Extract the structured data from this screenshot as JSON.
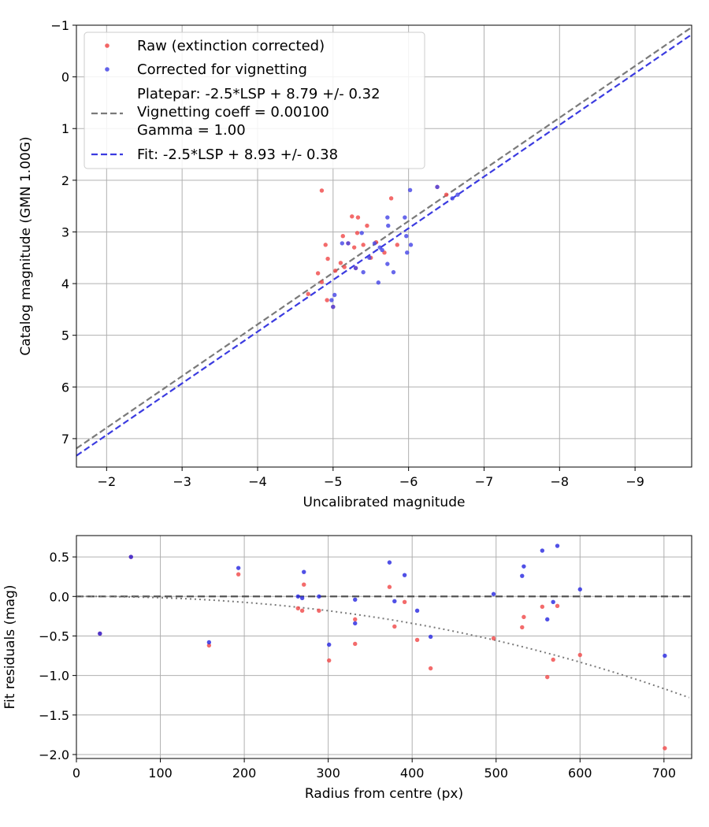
{
  "chart_data": [
    {
      "type": "scatter",
      "xlabel": "Uncalibrated magnitude",
      "ylabel": "Catalog magnitude (GMN 1.00G)",
      "xlim": [
        -1.6,
        -9.75
      ],
      "ylim": [
        7.55,
        -1.0
      ],
      "xticks": [
        -2,
        -3,
        -4,
        -5,
        -6,
        -7,
        -8,
        -9
      ],
      "yticks": [
        -1,
        0,
        1,
        2,
        3,
        4,
        5,
        6,
        7
      ],
      "grid": true,
      "legend_position": "top-left",
      "legend": [
        {
          "kind": "marker",
          "color": "#f04a4a",
          "text": [
            "Raw (extinction corrected)"
          ]
        },
        {
          "kind": "marker",
          "color": "#4747e6",
          "text": [
            "Corrected for vignetting"
          ]
        },
        {
          "kind": "line",
          "color": "#7a7a7a",
          "text": [
            "Platepar: -2.5*LSP + 8.79 +/- 0.32",
            "Vignetting coeff = 0.00100",
            "Gamma = 1.00"
          ]
        },
        {
          "kind": "line",
          "color": "#3b3be0",
          "text": [
            "Fit: -2.5*LSP + 8.93 +/- 0.38"
          ]
        }
      ],
      "lines": [
        {
          "name": "Platepar",
          "color": "#7a7a7a",
          "x": [
            -1.6,
            -9.75
          ],
          "y": [
            7.19,
            -0.96
          ]
        },
        {
          "name": "Fit",
          "color": "#3b3be0",
          "x": [
            -1.6,
            -9.75
          ],
          "y": [
            7.33,
            -0.82
          ]
        }
      ],
      "series": [
        {
          "name": "Raw (extinction corrected)",
          "color": "#f04a4a",
          "points": [
            [
              -4.85,
              2.2
            ],
            [
              -4.9,
              3.25
            ],
            [
              -4.93,
              3.52
            ],
            [
              -5.03,
              3.75
            ],
            [
              -5.1,
              3.6
            ],
            [
              -5.15,
              3.68
            ],
            [
              -5.13,
              3.08
            ],
            [
              -5.2,
              3.22
            ],
            [
              -5.25,
              2.7
            ],
            [
              -5.33,
              2.72
            ],
            [
              -5.28,
              3.3
            ],
            [
              -5.32,
              3.02
            ],
            [
              -5.45,
              2.88
            ],
            [
              -5.4,
              3.25
            ],
            [
              -5.5,
              3.5
            ],
            [
              -5.57,
              3.2
            ],
            [
              -5.68,
              3.4
            ],
            [
              -5.77,
              2.35
            ],
            [
              -5.85,
              3.25
            ],
            [
              -6.38,
              2.13
            ],
            [
              -6.5,
              2.28
            ],
            [
              -4.8,
              3.8
            ],
            [
              -4.85,
              3.97
            ],
            [
              -4.92,
              4.32
            ],
            [
              -4.67,
              4.2
            ],
            [
              -5.0,
              4.45
            ],
            [
              -5.3,
              3.7
            ]
          ]
        },
        {
          "name": "Corrected for vignetting",
          "color": "#4747e6",
          "points": [
            [
              -5.12,
              3.22
            ],
            [
              -5.38,
              3.02
            ],
            [
              -5.55,
              3.22
            ],
            [
              -5.62,
              3.3
            ],
            [
              -5.6,
              3.98
            ],
            [
              -5.72,
              2.72
            ],
            [
              -5.73,
              2.88
            ],
            [
              -5.72,
              3.62
            ],
            [
              -5.8,
              3.78
            ],
            [
              -5.95,
              2.72
            ],
            [
              -5.97,
              3.08
            ],
            [
              -5.98,
              3.4
            ],
            [
              -6.02,
              2.19
            ],
            [
              -6.03,
              3.25
            ],
            [
              -6.38,
              2.13
            ],
            [
              -6.58,
              2.35
            ],
            [
              -6.65,
              2.28
            ],
            [
              -5.0,
              4.45
            ],
            [
              -4.98,
              4.32
            ],
            [
              -5.02,
              4.22
            ],
            [
              -5.3,
              3.7
            ],
            [
              -5.4,
              3.78
            ],
            [
              -5.48,
              3.5
            ],
            [
              -5.2,
              3.22
            ],
            [
              -5.65,
              3.35
            ]
          ]
        }
      ]
    },
    {
      "type": "scatter",
      "xlabel": "Radius from centre (px)",
      "ylabel": "Fit residuals (mag)",
      "xlim": [
        0,
        733
      ],
      "ylim": [
        -2.05,
        0.77
      ],
      "xticks": [
        0,
        100,
        200,
        300,
        400,
        500,
        600,
        700
      ],
      "yticks": [
        0.5,
        0.0,
        -0.5,
        -1.0,
        -1.5,
        -2.0
      ],
      "ytick_labels": [
        "0.5",
        "0.0",
        "−0.5",
        "−1.0",
        "−1.5",
        "−2.0"
      ],
      "xtick_labels": [
        "0",
        "100",
        "200",
        "300",
        "400",
        "500",
        "600",
        "700"
      ],
      "grid": true,
      "lines": [
        {
          "name": "zero",
          "style": "dashed",
          "color": "#555555",
          "type": "constant",
          "value": 0
        },
        {
          "name": "vignetting",
          "style": "dotted",
          "color": "#7a7a7a",
          "type": "curve",
          "x_max": 730,
          "y_end": -1.28
        }
      ],
      "series": [
        {
          "name": "Raw",
          "color": "#f04a4a",
          "points": [
            [
              28,
              -0.47
            ],
            [
              65,
              0.5
            ],
            [
              158,
              -0.62
            ],
            [
              193,
              0.28
            ],
            [
              264,
              -0.15
            ],
            [
              269,
              -0.18
            ],
            [
              271,
              0.15
            ],
            [
              289,
              -0.18
            ],
            [
              301,
              -0.81
            ],
            [
              332,
              -0.6
            ],
            [
              332,
              -0.29
            ],
            [
              373,
              0.12
            ],
            [
              379,
              -0.38
            ],
            [
              391,
              -0.07
            ],
            [
              406,
              -0.55
            ],
            [
              422,
              -0.91
            ],
            [
              497,
              -0.53
            ],
            [
              531,
              -0.39
            ],
            [
              533,
              -0.26
            ],
            [
              555,
              -0.13
            ],
            [
              561,
              -1.02
            ],
            [
              568,
              -0.8
            ],
            [
              573,
              -0.12
            ],
            [
              600,
              -0.74
            ],
            [
              701,
              -1.92
            ]
          ]
        },
        {
          "name": "Corrected",
          "color": "#2a2ae0",
          "points": [
            [
              28,
              -0.47
            ],
            [
              65,
              0.5
            ],
            [
              158,
              -0.58
            ],
            [
              193,
              0.36
            ],
            [
              264,
              0.0
            ],
            [
              269,
              -0.02
            ],
            [
              271,
              0.31
            ],
            [
              289,
              0.0
            ],
            [
              301,
              -0.61
            ],
            [
              332,
              -0.34
            ],
            [
              332,
              -0.04
            ],
            [
              373,
              0.43
            ],
            [
              379,
              -0.06
            ],
            [
              391,
              0.27
            ],
            [
              406,
              -0.18
            ],
            [
              422,
              -0.51
            ],
            [
              497,
              0.03
            ],
            [
              531,
              0.26
            ],
            [
              533,
              0.38
            ],
            [
              555,
              0.58
            ],
            [
              561,
              -0.29
            ],
            [
              568,
              -0.07
            ],
            [
              573,
              0.64
            ],
            [
              600,
              0.09
            ],
            [
              701,
              -0.75
            ]
          ]
        }
      ]
    }
  ]
}
